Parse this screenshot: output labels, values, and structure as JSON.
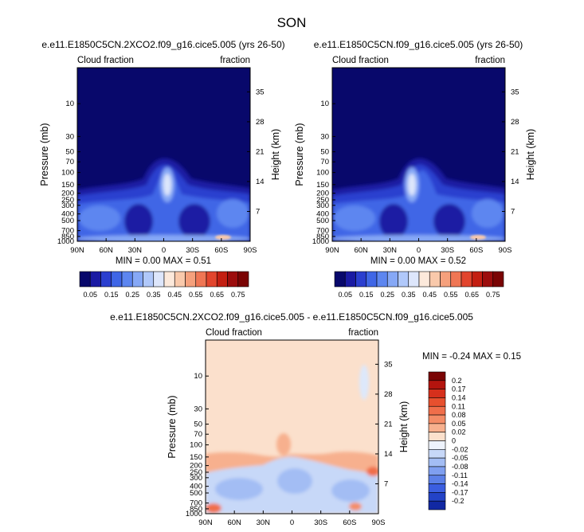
{
  "figure": {
    "title": "SON"
  },
  "chart_data": [
    {
      "type": "heatmap",
      "title": "e.e11.E1850C5CN.2XCO2.f09_g16.cice5.005 (yrs 26-50)",
      "left_annotation": "Cloud fraction",
      "right_annotation": "fraction",
      "xlabel": "",
      "ylabel": "Pressure (mb)",
      "ylabel_right": "Height (km)",
      "x_ticks": [
        "90N",
        "60N",
        "30N",
        "0",
        "30S",
        "60S",
        "90S"
      ],
      "x_values": [
        90,
        60,
        30,
        0,
        -30,
        -60,
        -90
      ],
      "y_ticks": [
        "10",
        "30",
        "50",
        "70",
        "100",
        "150",
        "200",
        "250",
        "300",
        "400",
        "500",
        "700",
        "850",
        "1000"
      ],
      "y_values": [
        10,
        30,
        50,
        70,
        100,
        150,
        200,
        250,
        300,
        400,
        500,
        700,
        850,
        1000
      ],
      "ylim": [
        3,
        1000
      ],
      "y_scale": "log",
      "right_ticks": [
        "35",
        "28",
        "21",
        "14",
        "7"
      ],
      "stats": "MIN =  0.00  MAX =  0.51",
      "colorbar": {
        "orientation": "horizontal",
        "labels": [
          "0.05",
          "0.15",
          "0.25",
          "0.35",
          "0.45",
          "0.55",
          "0.65",
          "0.75"
        ],
        "colors": [
          "#08086b",
          "#1a1aa3",
          "#2b3fcf",
          "#3f66e6",
          "#5d86f0",
          "#86a8f6",
          "#b0c8fa",
          "#dde6fb",
          "#fce9db",
          "#f9c9ab",
          "#f5a07c",
          "#ef7654",
          "#e2452d",
          "#c31f12",
          "#9c0d0d",
          "#7a0404"
        ]
      }
    },
    {
      "type": "heatmap",
      "title": "e.e11.E1850C5CN.f09_g16.cice5.005 (yrs 26-50)",
      "left_annotation": "Cloud fraction",
      "right_annotation": "fraction",
      "xlabel": "",
      "ylabel": "Pressure (mb)",
      "ylabel_right": "Height (km)",
      "x_ticks": [
        "90N",
        "60N",
        "30N",
        "0",
        "30S",
        "60S",
        "90S"
      ],
      "x_values": [
        90,
        60,
        30,
        0,
        -30,
        -60,
        -90
      ],
      "y_ticks": [
        "10",
        "30",
        "50",
        "70",
        "100",
        "150",
        "200",
        "250",
        "300",
        "400",
        "500",
        "700",
        "850",
        "1000"
      ],
      "y_values": [
        10,
        30,
        50,
        70,
        100,
        150,
        200,
        250,
        300,
        400,
        500,
        700,
        850,
        1000
      ],
      "ylim": [
        3,
        1000
      ],
      "y_scale": "log",
      "right_ticks": [
        "35",
        "28",
        "21",
        "14",
        "7"
      ],
      "stats": "MIN =  0.00  MAX =  0.52",
      "colorbar": {
        "orientation": "horizontal",
        "labels": [
          "0.05",
          "0.15",
          "0.25",
          "0.35",
          "0.45",
          "0.55",
          "0.65",
          "0.75"
        ],
        "colors": [
          "#08086b",
          "#1a1aa3",
          "#2b3fcf",
          "#3f66e6",
          "#5d86f0",
          "#86a8f6",
          "#b0c8fa",
          "#dde6fb",
          "#fce9db",
          "#f9c9ab",
          "#f5a07c",
          "#ef7654",
          "#e2452d",
          "#c31f12",
          "#9c0d0d",
          "#7a0404"
        ]
      }
    },
    {
      "type": "heatmap",
      "title": "e.e11.E1850C5CN.2XCO2.f09_g16.cice5.005 - e.e11.E1850C5CN.f09_g16.cice5.005",
      "left_annotation": "Cloud fraction",
      "right_annotation": "fraction",
      "xlabel": "",
      "ylabel": "Pressure (mb)",
      "ylabel_right": "Height (km)",
      "x_ticks": [
        "90N",
        "60N",
        "30N",
        "0",
        "30S",
        "60S",
        "90S"
      ],
      "x_values": [
        90,
        60,
        30,
        0,
        -30,
        -60,
        -90
      ],
      "y_ticks": [
        "10",
        "30",
        "50",
        "70",
        "100",
        "150",
        "200",
        "250",
        "300",
        "400",
        "500",
        "700",
        "850",
        "1000"
      ],
      "y_values": [
        10,
        30,
        50,
        70,
        100,
        150,
        200,
        250,
        300,
        400,
        500,
        700,
        850,
        1000
      ],
      "ylim": [
        3,
        1000
      ],
      "y_scale": "log",
      "right_ticks": [
        "35",
        "28",
        "21",
        "14",
        "7"
      ],
      "stats": "MIN = -0.24  MAX =   0.15",
      "colorbar": {
        "orientation": "vertical",
        "labels": [
          "0.2",
          "0.17",
          "0.14",
          "0.11",
          "0.08",
          "0.05",
          "0.02",
          "0",
          "-0.02",
          "-0.05",
          "-0.08",
          "-0.11",
          "-0.14",
          "-0.17",
          "-0.2"
        ],
        "colors": [
          "#7a0404",
          "#b3140e",
          "#d6301c",
          "#e7502e",
          "#f06e4a",
          "#f48c66",
          "#f7b08e",
          "#fbe0cc",
          "#eef3fc",
          "#c7d8f8",
          "#a3bdf4",
          "#7f9ff0",
          "#5c80e8",
          "#3b5ee0",
          "#2343c7",
          "#1128a3"
        ]
      }
    }
  ]
}
